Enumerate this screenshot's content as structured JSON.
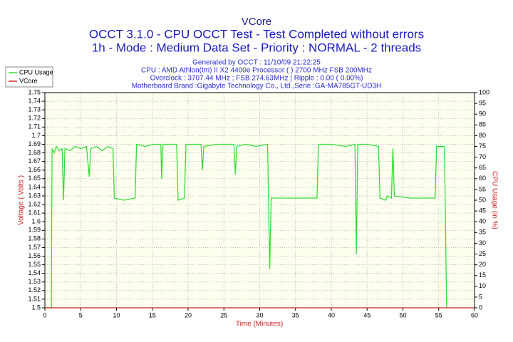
{
  "chart_data": {
    "type": "line",
    "title": "VCore",
    "subtitle": [
      "OCCT 3.1.0 - CPU OCCT Test - Test Completed without errors",
      "1h - Mode : Medium Data Set - Priority : NORMAL - 2 threads"
    ],
    "info": [
      "Generated by OCCT : 11/10/09 21:22:25",
      "CPU : AMD Athlon(tm) II X2 4400e Processor (  ) 2700 MHz FSB 200MHz",
      "Overclock : 3707.44 MHz ; FSB 274.63MHz | Ripple : 0.00 ( 0.00%)",
      "Motherboard Brand :Gigabyte Technology Co., Ltd.,Serie :GA-MA785GT-UD3H"
    ],
    "xlabel": "Time (Minutes)",
    "ylabel": "Voltage ( Volts )",
    "y2label": "CPU Usage (in %)",
    "xlim": [
      0,
      60
    ],
    "xticks": [
      0,
      5,
      10,
      15,
      20,
      25,
      30,
      35,
      40,
      45,
      50,
      55,
      60
    ],
    "ylim": [
      1.5,
      1.75
    ],
    "yticks": [
      1.5,
      1.51,
      1.52,
      1.53,
      1.54,
      1.55,
      1.56,
      1.57,
      1.58,
      1.59,
      1.6,
      1.61,
      1.62,
      1.63,
      1.64,
      1.65,
      1.66,
      1.67,
      1.68,
      1.69,
      1.7,
      1.71,
      1.72,
      1.73,
      1.74,
      1.75
    ],
    "y2lim": [
      0,
      100
    ],
    "y2ticks": [
      0,
      5,
      10,
      15,
      20,
      25,
      30,
      35,
      40,
      45,
      50,
      55,
      60,
      65,
      70,
      75,
      80,
      85,
      90,
      95,
      100
    ],
    "grid": true,
    "legend": "top-left",
    "series": [
      {
        "name": "CPU Usage",
        "color": "#33dd33",
        "axis": "y2",
        "x": [
          0,
          0.9,
          1.0,
          1.3,
          1.6,
          2.0,
          2.4,
          2.6,
          2.8,
          3.5,
          4.2,
          5.0,
          5.8,
          6.2,
          6.4,
          7.2,
          8.0,
          8.8,
          9.5,
          9.7,
          11,
          12.6,
          12.8,
          14,
          15.2,
          16.2,
          16.3,
          16.5,
          18.4,
          18.6,
          19.5,
          19.7,
          21.8,
          22.0,
          22.2,
          24,
          26.4,
          26.6,
          26.8,
          28,
          29.5,
          31.1,
          31.4,
          31.6,
          34,
          38.0,
          38.2,
          40,
          42,
          43.3,
          43.5,
          43.7,
          45,
          46.6,
          46.8,
          47.6,
          47.8,
          48.4,
          48.6,
          48.8,
          51,
          54.5,
          54.7,
          55.8,
          56.1
        ],
        "values": [
          0,
          0,
          74,
          72,
          75,
          73,
          74,
          50,
          74,
          73,
          75,
          74,
          75,
          61,
          74,
          75,
          73,
          75,
          74,
          51,
          50,
          51,
          76,
          75,
          76,
          76,
          60,
          76,
          76,
          50,
          51,
          76,
          76,
          64,
          75,
          76,
          76,
          62,
          75,
          76,
          75,
          76,
          18,
          51,
          51,
          51,
          76,
          76,
          75,
          76,
          25,
          76,
          76,
          75,
          51,
          50,
          52,
          51,
          74,
          52,
          51,
          51,
          75,
          75,
          0
        ]
      },
      {
        "name": "VCore",
        "color": "#cc2222",
        "x": [
          0,
          60
        ],
        "values": [
          1.5,
          1.5
        ]
      }
    ]
  }
}
